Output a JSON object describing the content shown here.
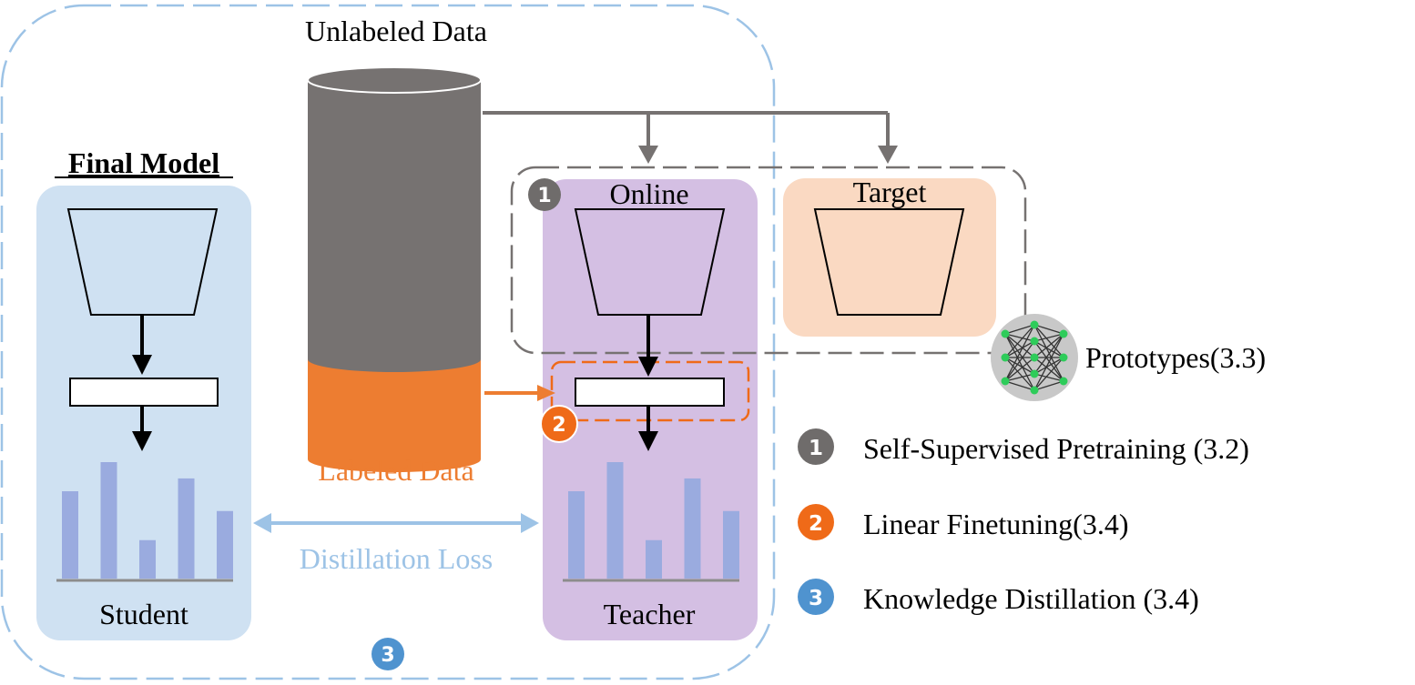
{
  "labels": {
    "unlabeled_data": "Unlabeled Data",
    "labeled_data": "Labeled Data",
    "final_model": "Final Model",
    "student": "Student",
    "teacher": "Teacher",
    "online": "Online",
    "target": "Target",
    "prototypes": "Prototypes(3.3)",
    "distillation_loss": "Distillation Loss"
  },
  "badges": {
    "one": "1",
    "two": "2",
    "three": "3"
  },
  "legend": [
    {
      "badge": "1",
      "label": "Self-Supervised Pretraining (3.2)",
      "color": "#6f6c6b"
    },
    {
      "badge": "2",
      "label": "Linear Finetuning(3.4)",
      "color": "#ef6a18"
    },
    {
      "badge": "3",
      "label": "Knowledge Distillation (3.4)",
      "color": "#4f93cf"
    }
  ],
  "student_bars": [
    0.75,
    1.0,
    0.33,
    0.86,
    0.58
  ],
  "teacher_bars": [
    0.75,
    1.0,
    0.33,
    0.86,
    0.58
  ],
  "colors": {
    "student_panel": "#cfe1f2",
    "teacher_panel": "#d4bfe3",
    "target_panel": "#fad9c2",
    "cylinder": "#767271",
    "labeled": "#ed7d31",
    "bar": "#9aabdf",
    "badge_gray": "#6f6c6b",
    "badge_orange": "#ef6a18",
    "badge_blue": "#4f93cf",
    "dist_arrow": "#9dc3e6"
  }
}
